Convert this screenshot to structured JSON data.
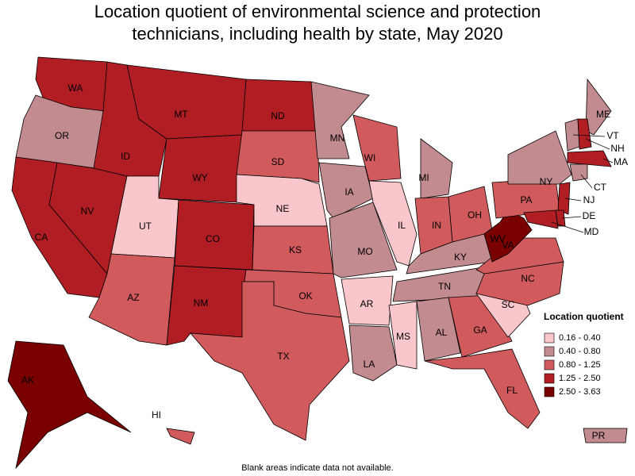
{
  "title": [
    "Location quotient of environmental science and protection",
    "technicians, including health by state, May 2020"
  ],
  "legend": {
    "title": "Location quotient",
    "entries": [
      {
        "label": "0.16 - 0.40",
        "color": "#f9c6cb"
      },
      {
        "label": "0.40 - 0.80",
        "color": "#c28b8f"
      },
      {
        "label": "0.80 - 1.25",
        "color": "#d15a5c"
      },
      {
        "label": "1.25 - 2.50",
        "color": "#b01e24"
      },
      {
        "label": "2.50 - 3.63",
        "color": "#7a0000"
      }
    ]
  },
  "states": [
    {
      "label": "WA",
      "color": "#b01e24"
    },
    {
      "label": "OR",
      "color": "#c28b8f"
    },
    {
      "label": "CA",
      "color": "#b01e24"
    },
    {
      "label": "NV",
      "color": "#b01e24"
    },
    {
      "label": "ID",
      "color": "#b01e24"
    },
    {
      "label": "MT",
      "color": "#b01e24"
    },
    {
      "label": "WY",
      "color": "#b01e24"
    },
    {
      "label": "UT",
      "color": "#f9c6cb"
    },
    {
      "label": "CO",
      "color": "#b01e24"
    },
    {
      "label": "AZ",
      "color": "#d15a5c"
    },
    {
      "label": "NM",
      "color": "#b01e24"
    },
    {
      "label": "ND",
      "color": "#b01e24"
    },
    {
      "label": "SD",
      "color": "#d15a5c"
    },
    {
      "label": "NE",
      "color": "#f9c6cb"
    },
    {
      "label": "KS",
      "color": "#d15a5c"
    },
    {
      "label": "OK",
      "color": "#d15a5c"
    },
    {
      "label": "TX",
      "color": "#d15a5c"
    },
    {
      "label": "MN",
      "color": "#c28b8f"
    },
    {
      "label": "IA",
      "color": "#c28b8f"
    },
    {
      "label": "MO",
      "color": "#c28b8f"
    },
    {
      "label": "AR",
      "color": "#f9c6cb"
    },
    {
      "label": "LA",
      "color": "#c28b8f"
    },
    {
      "label": "WI",
      "color": "#d15a5c"
    },
    {
      "label": "IL",
      "color": "#f9c6cb"
    },
    {
      "label": "MI",
      "color": "#c28b8f"
    },
    {
      "label": "IN",
      "color": "#d15a5c"
    },
    {
      "label": "OH",
      "color": "#d15a5c"
    },
    {
      "label": "KY",
      "color": "#c28b8f"
    },
    {
      "label": "TN",
      "color": "#c28b8f"
    },
    {
      "label": "MS",
      "color": "#f9c6cb"
    },
    {
      "label": "AL",
      "color": "#c28b8f"
    },
    {
      "label": "GA",
      "color": "#d15a5c"
    },
    {
      "label": "FL",
      "color": "#d15a5c"
    },
    {
      "label": "SC",
      "color": "#f9c6cb"
    },
    {
      "label": "NC",
      "color": "#d15a5c"
    },
    {
      "label": "VA",
      "color": "#d15a5c"
    },
    {
      "label": "WV",
      "color": "#7a0000"
    },
    {
      "label": "PA",
      "color": "#d15a5c"
    },
    {
      "label": "NY",
      "color": "#c28b8f"
    },
    {
      "label": "ME",
      "color": "#c28b8f"
    },
    {
      "label": "VT",
      "color": "#c28b8f"
    },
    {
      "label": "NH",
      "color": "#b01e24"
    },
    {
      "label": "MA",
      "color": "#b01e24"
    },
    {
      "label": "CT",
      "color": "#c28b8f"
    },
    {
      "label": "NJ",
      "color": "#b01e24"
    },
    {
      "label": "DE",
      "color": "#b01e24"
    },
    {
      "label": "MD",
      "color": "#b01e24"
    },
    {
      "label": "AK",
      "color": "#7a0000"
    },
    {
      "label": "HI",
      "color": "#d15a5c"
    },
    {
      "label": "PR",
      "color": "#c28b8f"
    }
  ],
  "note": "Blank areas indicate data not available."
}
